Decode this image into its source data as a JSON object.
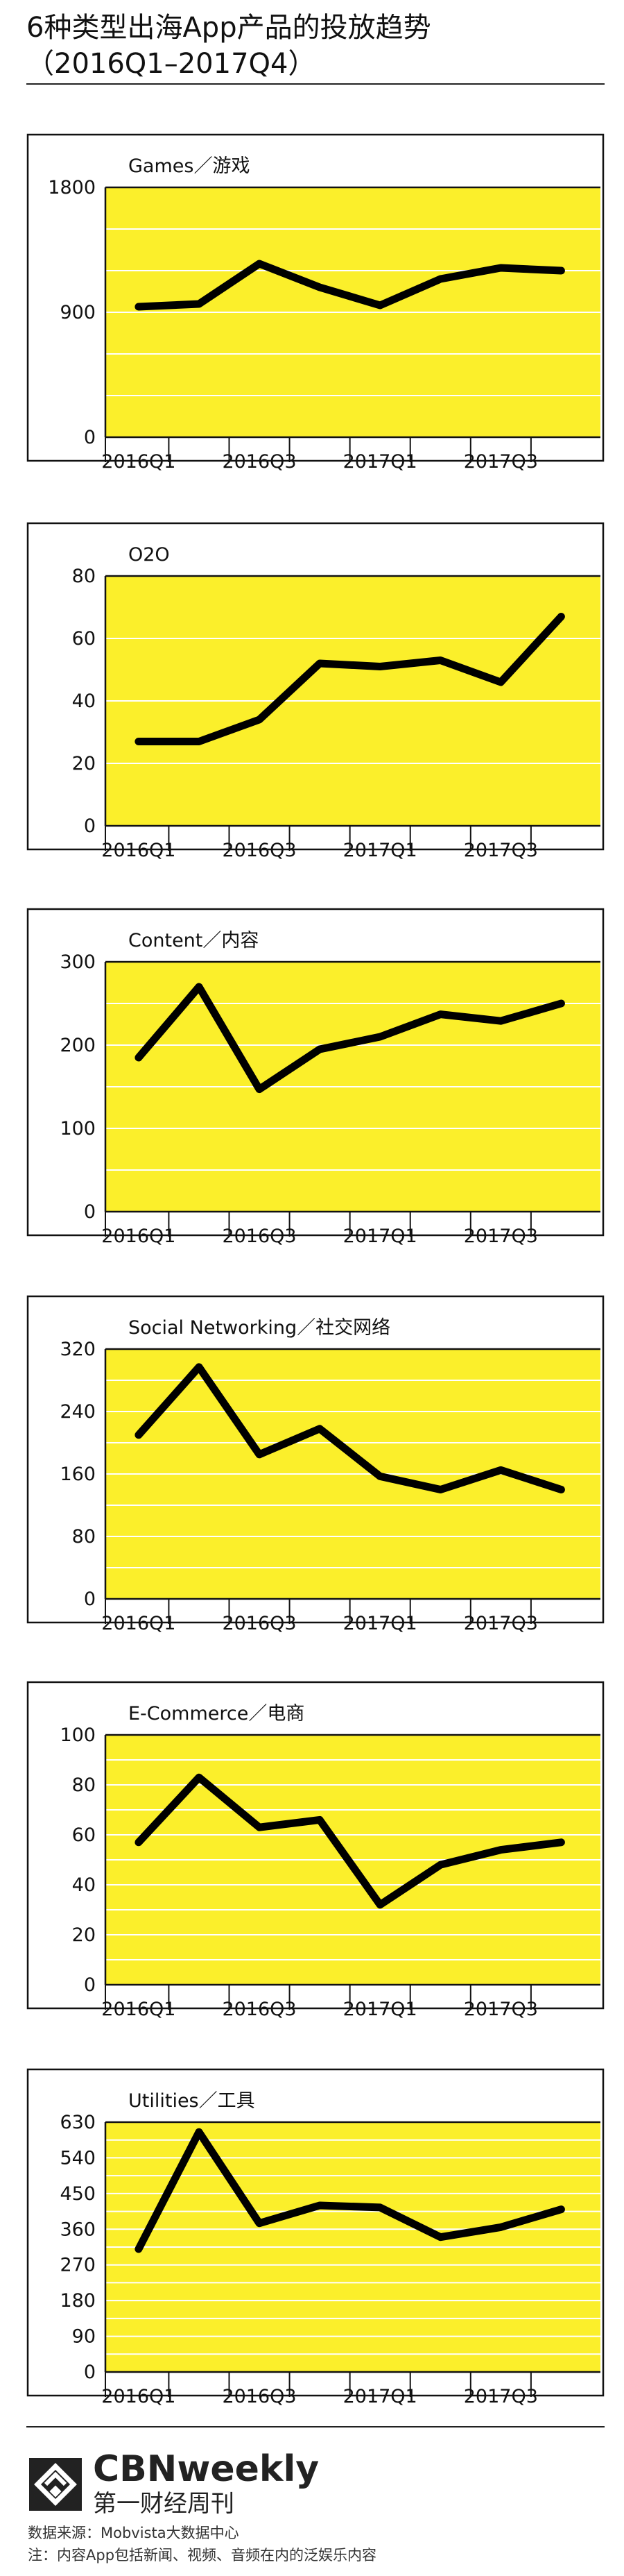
{
  "page": {
    "title_line1": "6种类型出海App产品的投放趋势",
    "title_line2": "（2016Q1–2017Q4）"
  },
  "footer": {
    "brand_en": "CBNweekly",
    "brand_cn": "第一财经周刊",
    "source": "数据来源：Mobvista大数据中心",
    "note": "注：内容App包括新闻、视频、音频在内的泛娱乐内容"
  },
  "colors": {
    "plot_bg": "#fbef2b",
    "line": "#000000",
    "grid": "#ffffff"
  },
  "chart_data": [
    {
      "type": "line",
      "title": "Games／游戏",
      "categories": [
        "2016Q1",
        "2016Q2",
        "2016Q3",
        "2016Q4",
        "2017Q1",
        "2017Q2",
        "2017Q3",
        "2017Q4"
      ],
      "x_tick_labels": [
        "2016Q1",
        "2016Q3",
        "2017Q1",
        "2017Q3"
      ],
      "values": [
        940,
        960,
        1250,
        1080,
        950,
        1140,
        1220,
        1200
      ],
      "ylim": [
        0,
        1800
      ],
      "yticks": [
        0,
        900,
        1800
      ],
      "grid_step": 300
    },
    {
      "type": "line",
      "title": "O2O",
      "categories": [
        "2016Q1",
        "2016Q2",
        "2016Q3",
        "2016Q4",
        "2017Q1",
        "2017Q2",
        "2017Q3",
        "2017Q4"
      ],
      "x_tick_labels": [
        "2016Q1",
        "2016Q3",
        "2017Q1",
        "2017Q3"
      ],
      "values": [
        27,
        27,
        34,
        52,
        51,
        53,
        46,
        67
      ],
      "ylim": [
        0,
        80
      ],
      "yticks": [
        0,
        20,
        40,
        60,
        80
      ],
      "grid_step": 20
    },
    {
      "type": "line",
      "title": "Content／内容",
      "categories": [
        "2016Q1",
        "2016Q2",
        "2016Q3",
        "2016Q4",
        "2017Q1",
        "2017Q2",
        "2017Q3",
        "2017Q4"
      ],
      "x_tick_labels": [
        "2016Q1",
        "2016Q3",
        "2017Q1",
        "2017Q3"
      ],
      "values": [
        185,
        270,
        147,
        195,
        210,
        237,
        229,
        250
      ],
      "ylim": [
        0,
        300
      ],
      "yticks": [
        0,
        100,
        200,
        300
      ],
      "grid_step": 50
    },
    {
      "type": "line",
      "title": "Social Networking／社交网络",
      "categories": [
        "2016Q1",
        "2016Q2",
        "2016Q3",
        "2016Q4",
        "2017Q1",
        "2017Q2",
        "2017Q3",
        "2017Q4"
      ],
      "x_tick_labels": [
        "2016Q1",
        "2016Q3",
        "2017Q1",
        "2017Q3"
      ],
      "values": [
        210,
        297,
        185,
        218,
        157,
        140,
        165,
        140
      ],
      "ylim": [
        0,
        320
      ],
      "yticks": [
        0,
        80,
        160,
        240,
        320
      ],
      "grid_step": 40
    },
    {
      "type": "line",
      "title": "E-Commerce／电商",
      "categories": [
        "2016Q1",
        "2016Q2",
        "2016Q3",
        "2016Q4",
        "2017Q1",
        "2017Q2",
        "2017Q3",
        "2017Q4"
      ],
      "x_tick_labels": [
        "2016Q1",
        "2016Q3",
        "2017Q1",
        "2017Q3"
      ],
      "values": [
        57,
        83,
        63,
        66,
        32,
        48,
        54,
        57
      ],
      "ylim": [
        0,
        100
      ],
      "yticks": [
        0,
        20,
        40,
        60,
        80,
        100
      ],
      "grid_step": 10
    },
    {
      "type": "line",
      "title": "Utilities／工具",
      "categories": [
        "2016Q1",
        "2016Q2",
        "2016Q3",
        "2016Q4",
        "2017Q1",
        "2017Q2",
        "2017Q3",
        "2017Q4"
      ],
      "x_tick_labels": [
        "2016Q1",
        "2016Q3",
        "2017Q1",
        "2017Q3"
      ],
      "values": [
        310,
        605,
        375,
        420,
        415,
        340,
        365,
        410
      ],
      "ylim": [
        0,
        630
      ],
      "yticks": [
        0,
        90,
        180,
        270,
        360,
        450,
        540,
        630
      ],
      "grid_step": 45
    }
  ]
}
